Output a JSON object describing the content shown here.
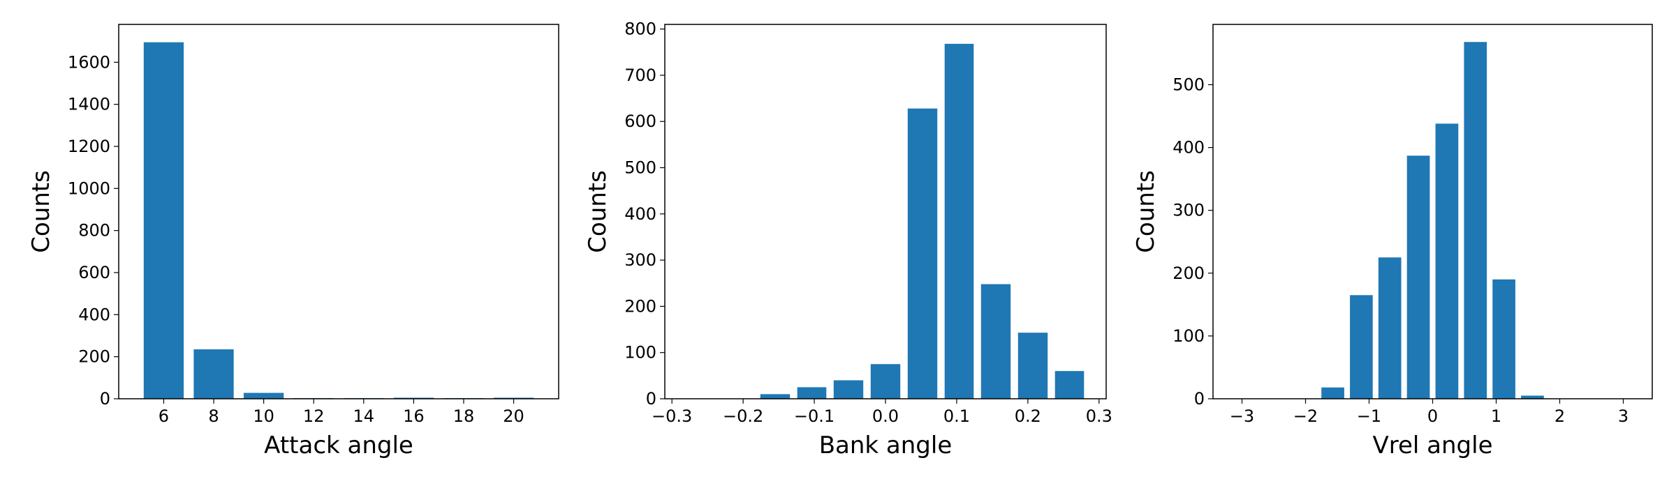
{
  "chart_data": [
    {
      "type": "histogram",
      "xlabel": "Attack angle",
      "ylabel": "Counts",
      "color": "#1f77b4",
      "bins": [
        5,
        7,
        9,
        11,
        13,
        15,
        17,
        19,
        21
      ],
      "values": [
        1695,
        235,
        28,
        3,
        3,
        5,
        3,
        5
      ],
      "xlim": [
        4.2,
        21.8
      ],
      "xticks": [
        6,
        8,
        10,
        12,
        14,
        16,
        18,
        20
      ],
      "ylim": [
        0,
        1780
      ],
      "yticks": [
        0,
        200,
        400,
        600,
        800,
        1000,
        1200,
        1400,
        1600
      ]
    },
    {
      "type": "histogram",
      "xlabel": "Bank angle",
      "ylabel": "Counts",
      "color": "#1f77b4",
      "bins": [
        -0.181,
        -0.129,
        -0.078,
        -0.026,
        0.026,
        0.078,
        0.129,
        0.181,
        0.233,
        0.284
      ],
      "values": [
        10,
        25,
        40,
        75,
        628,
        768,
        248,
        143,
        60
      ],
      "xlim": [
        -0.31,
        0.31
      ],
      "xticks": [
        {
          "value": -0.3,
          "label": "−0.3"
        },
        {
          "value": -0.2,
          "label": "−0.2"
        },
        {
          "value": -0.1,
          "label": "−0.1"
        },
        {
          "value": 0,
          "label": "0.0"
        },
        0.1,
        0.2,
        0.3
      ],
      "ylim": [
        0,
        810
      ],
      "yticks": [
        0,
        100,
        200,
        300,
        400,
        500,
        600,
        700,
        800
      ]
    },
    {
      "type": "histogram",
      "xlabel": "Vrel angle",
      "ylabel": "Counts",
      "color": "#1f77b4",
      "bins": [
        -3.142,
        -2.693,
        -2.244,
        -1.795,
        -1.346,
        -0.898,
        -0.449,
        0,
        0.449,
        0.898,
        1.346,
        1.795,
        2.244,
        2.693,
        3.142
      ],
      "values": [
        0,
        0,
        0,
        18,
        165,
        225,
        387,
        438,
        568,
        190,
        5,
        0,
        0,
        0
      ],
      "xlim": [
        -3.456,
        3.456
      ],
      "xticks": [
        {
          "value": -3,
          "label": "−3"
        },
        {
          "value": -2,
          "label": "−2"
        },
        {
          "value": -1,
          "label": "−1"
        },
        0,
        1,
        2,
        3
      ],
      "ylim": [
        0,
        596
      ],
      "yticks": [
        0,
        100,
        200,
        300,
        400,
        500
      ]
    }
  ]
}
